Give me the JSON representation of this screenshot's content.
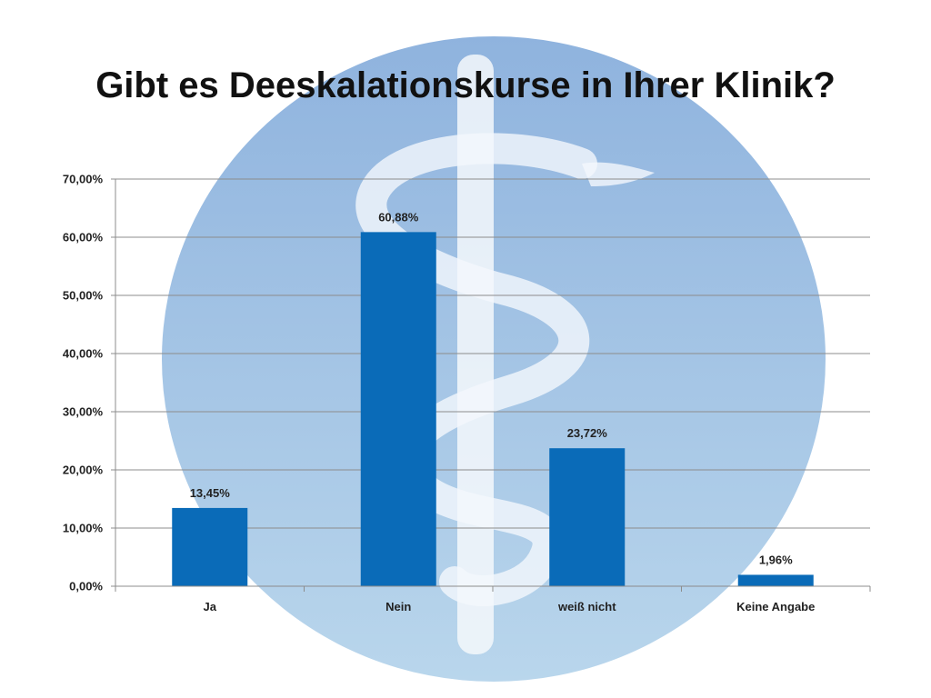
{
  "slide": {
    "title": "Gibt es Deeskalationskurse in Ihrer Klinik?",
    "background_emblem": "rod-of-asclepius-icon"
  },
  "colors": {
    "bar": "#0a6bb8",
    "grid": "#8c8c8c",
    "emblem_light": "#b7cfe9",
    "emblem_mid": "#8fb3de",
    "emblem_low": "#a9cbe6"
  },
  "chart_data": {
    "type": "bar",
    "categories": [
      "Ja",
      "Nein",
      "weiß nicht",
      "Keine Angabe"
    ],
    "values": [
      13.45,
      60.88,
      23.72,
      1.96
    ],
    "data_labels": [
      "13,45%",
      "60,88%",
      "23,72%",
      "1,96%"
    ],
    "y_ticks": [
      0,
      10,
      20,
      30,
      40,
      50,
      60,
      70
    ],
    "y_tick_labels": [
      "0,00%",
      "10,00%",
      "20,00%",
      "30,00%",
      "40,00%",
      "50,00%",
      "60,00%",
      "70,00%"
    ],
    "ylim": [
      0,
      70
    ],
    "title": "",
    "xlabel": "",
    "ylabel": "",
    "grid": true,
    "legend": "none"
  }
}
